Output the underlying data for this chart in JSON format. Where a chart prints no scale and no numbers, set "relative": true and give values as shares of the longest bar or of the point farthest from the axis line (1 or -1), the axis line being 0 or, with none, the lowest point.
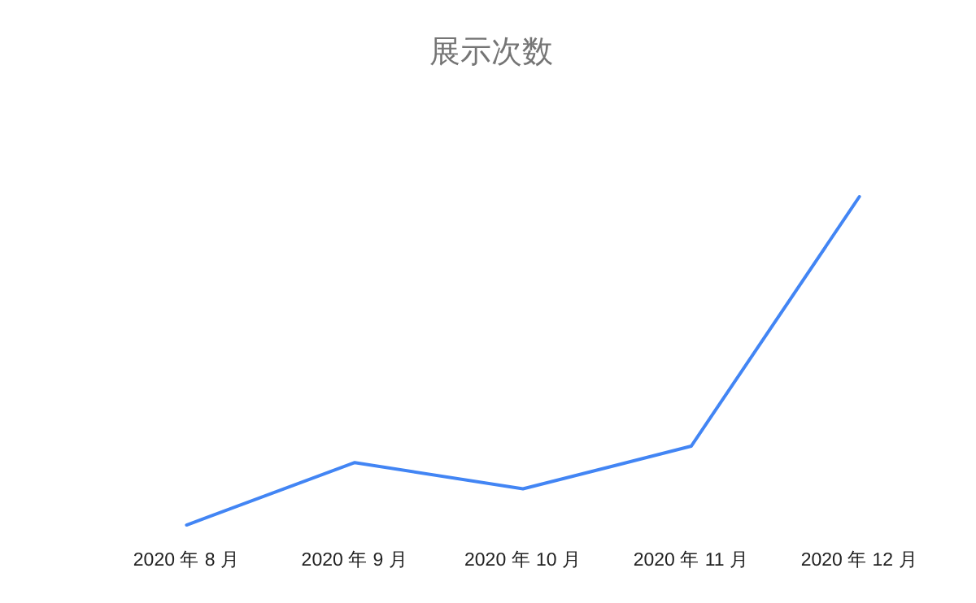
{
  "chart_data": {
    "type": "line",
    "title": "展示次数",
    "relative": true,
    "categories": [
      "2020 年 8 月",
      "2020 年 9 月",
      "2020 年 10 月",
      "2020 年 11 月",
      "2020 年 12 月"
    ],
    "series": [
      {
        "color": "#4285f4",
        "values": [
          0,
          0.19,
          0.11,
          0.24,
          1
        ]
      }
    ]
  }
}
